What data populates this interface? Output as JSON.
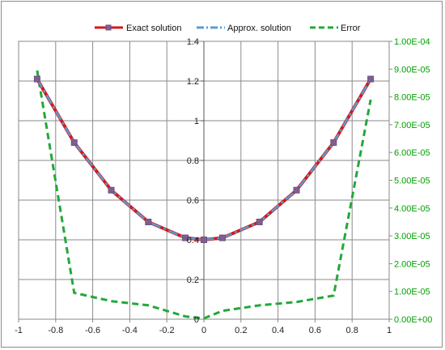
{
  "chart_data": {
    "type": "line",
    "title": "",
    "xlabel": "",
    "ylabel": "",
    "xlim": [
      -1,
      1
    ],
    "ylim": [
      0,
      1.4
    ],
    "y2lim": [
      0,
      0.0001
    ],
    "x_ticks": [
      "-1",
      "-0.8",
      "-0.6",
      "-0.4",
      "-0.2",
      "0",
      "0.2",
      "0.4",
      "0.6",
      "0.8",
      "1"
    ],
    "y_ticks": [
      "0",
      "0.2",
      "0.4",
      "0.6",
      "0.8",
      "1",
      "1.2",
      "1.4"
    ],
    "y2_ticks": [
      "0.00E+00",
      "1.00E-05",
      "2.00E-05",
      "3.00E-05",
      "4.00E-05",
      "5.00E-05",
      "6.00E-05",
      "7.00E-05",
      "8.00E-05",
      "9.00E-05",
      "1.00E-04"
    ],
    "grid": true,
    "legend_position": "top",
    "series": [
      {
        "name": "Exact solution",
        "axis": "left",
        "color": "#d11a1a",
        "marker": "square",
        "x": [
          -0.9,
          -0.7,
          -0.5,
          -0.3,
          -0.1,
          0,
          0.1,
          0.3,
          0.5,
          0.7,
          0.9
        ],
        "y": [
          1.21,
          0.89,
          0.65,
          0.49,
          0.41,
          0.4,
          0.41,
          0.49,
          0.65,
          0.89,
          1.21
        ]
      },
      {
        "name": "Approx. solution",
        "axis": "left",
        "color": "#5b9bd5",
        "x": [
          -0.9,
          -0.7,
          -0.5,
          -0.3,
          -0.1,
          0,
          0.1,
          0.3,
          0.5,
          0.7,
          0.9
        ],
        "y": [
          1.21,
          0.89,
          0.65,
          0.49,
          0.41,
          0.4,
          0.41,
          0.49,
          0.65,
          0.89,
          1.21
        ]
      },
      {
        "name": "Error",
        "axis": "right",
        "color": "#22a83a",
        "x": [
          -0.9,
          -0.7,
          -0.5,
          -0.3,
          -0.1,
          0,
          0.1,
          0.3,
          0.5,
          0.7,
          0.9
        ],
        "y": [
          8.95e-05,
          9.5e-06,
          6.5e-06,
          5e-06,
          1e-06,
          3e-07,
          3e-06,
          5e-06,
          6.2e-06,
          8.5e-06,
          7.9e-05
        ]
      }
    ]
  },
  "legend": {
    "exact": "Exact solution",
    "approx": "Approx. solution",
    "error": "Error"
  }
}
